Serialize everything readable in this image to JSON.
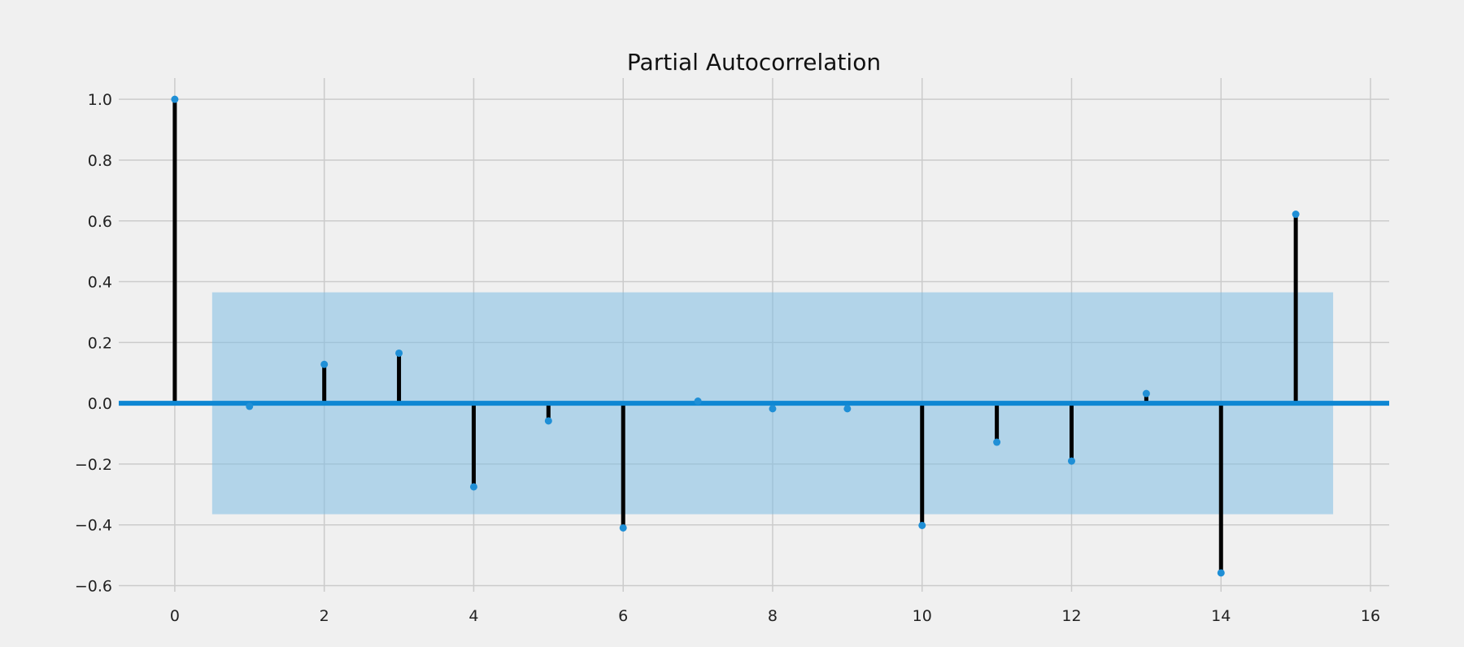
{
  "chart_data": {
    "type": "stem",
    "title": "Partial Autocorrelation",
    "xlabel": "",
    "ylabel": "",
    "xlim": [
      -0.75,
      16.25
    ],
    "ylim": [
      -0.62,
      1.07
    ],
    "xticks": [
      0,
      2,
      4,
      6,
      8,
      10,
      12,
      14,
      16
    ],
    "yticks": [
      -0.6,
      -0.4,
      -0.2,
      0.0,
      0.2,
      0.4,
      0.6,
      0.8,
      1.0
    ],
    "ytick_labels": [
      "−0.6",
      "−0.4",
      "−0.2",
      "0.0",
      "0.2",
      "0.4",
      "0.6",
      "0.8",
      "1.0"
    ],
    "grid": true,
    "lags": [
      0,
      1,
      2,
      3,
      4,
      5,
      6,
      7,
      8,
      9,
      10,
      11,
      12,
      13,
      14,
      15
    ],
    "values": [
      1.0,
      -0.01,
      0.128,
      0.165,
      -0.275,
      -0.058,
      -0.41,
      0.007,
      -0.018,
      -0.018,
      -0.402,
      -0.128,
      -0.19,
      0.032,
      -0.558,
      0.622
    ],
    "confidence_band": {
      "x_range": [
        0.5,
        15.5
      ],
      "upper": 0.365,
      "lower": -0.365
    },
    "colors": {
      "background": "#f0f0f0",
      "grid": "#cbcbcb",
      "stem": "#000000",
      "marker": "#1f8fd6",
      "zero_line": "#0e87d3",
      "band": "#7fbde4"
    }
  }
}
